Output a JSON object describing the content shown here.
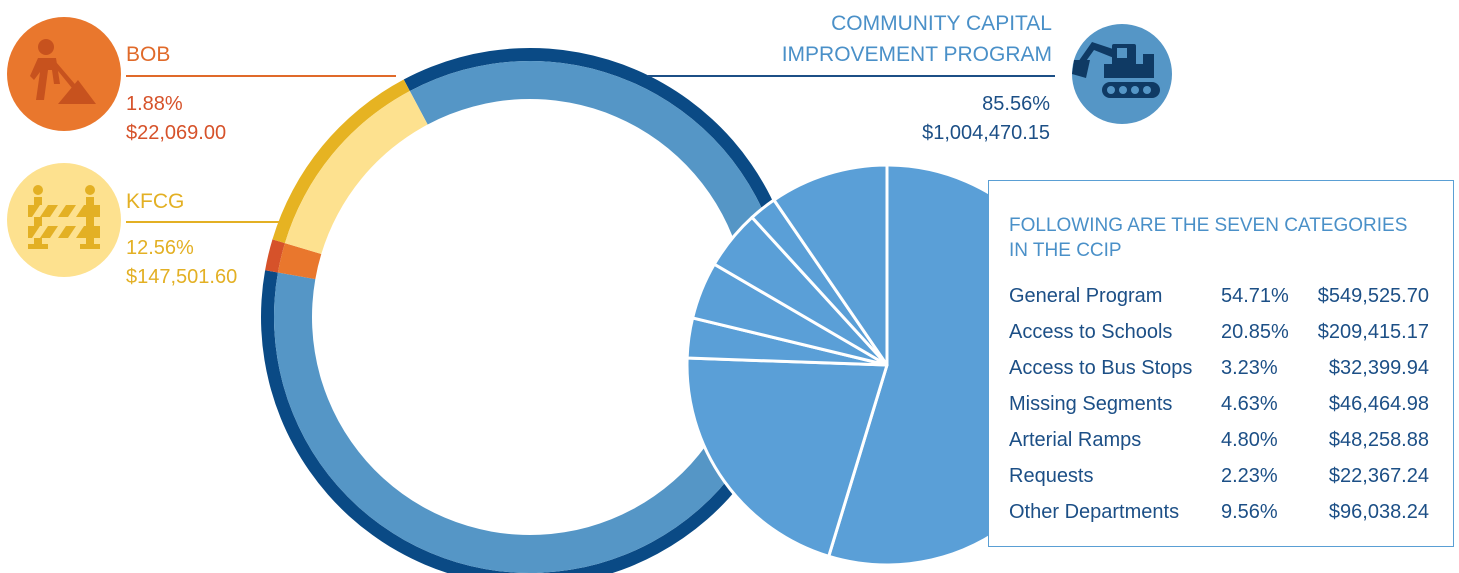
{
  "chart_data": [
    {
      "type": "pie",
      "style": "donut",
      "slices": [
        {
          "name": "COMMUNITY CAPITAL IMPROVEMENT PROGRAM",
          "percent": "85.56%",
          "value": 85.56,
          "amount": "$1,004,470.15",
          "color": "#5596c6",
          "color_outer": "#0a4a85"
        },
        {
          "name": "BOB",
          "percent": "1.88%",
          "value": 1.88,
          "amount": "$22,069.00",
          "color": "#e9772d",
          "color_outer": "#d6522a"
        },
        {
          "name": "KFCG",
          "percent": "12.56%",
          "value": 12.56,
          "amount": "$147,501.60",
          "color": "#fde18f",
          "color_outer": "#e6b322"
        }
      ]
    },
    {
      "type": "pie",
      "title": "FOLLOWING ARE THE SEVEN CATEGORIES IN THE CCIP",
      "color": "#5a9fd7",
      "slices": [
        {
          "name": "General Program",
          "percent": "54.71%",
          "value": 54.71,
          "amount": "$549,525.70"
        },
        {
          "name": "Access to Schools",
          "percent": "20.85%",
          "value": 20.85,
          "amount": "$209,415.17"
        },
        {
          "name": "Access to Bus Stops",
          "percent": "3.23%",
          "value": 3.23,
          "amount": "$32,399.94"
        },
        {
          "name": "Missing Segments",
          "percent": "4.63%",
          "value": 4.63,
          "amount": "$46,464.98"
        },
        {
          "name": "Arterial Ramps",
          "percent": "4.80%",
          "value": 4.8,
          "amount": "$48,258.88"
        },
        {
          "name": "Requests",
          "percent": "2.23%",
          "value": 2.23,
          "amount": "$22,367.24"
        },
        {
          "name": "Other Departments",
          "percent": "9.56%",
          "value": 9.56,
          "amount": "$96,038.24"
        }
      ]
    }
  ],
  "icons": {
    "bob": "worker-shoveling-icon",
    "kfcg": "road-barricade-icon",
    "ccip": "excavator-icon"
  },
  "colors": {
    "bob_text": "#e06a2a",
    "kfcg_text": "#e3b024",
    "ccip_text": "#4a90c8",
    "ccip_value_text": "#1c4f86"
  }
}
